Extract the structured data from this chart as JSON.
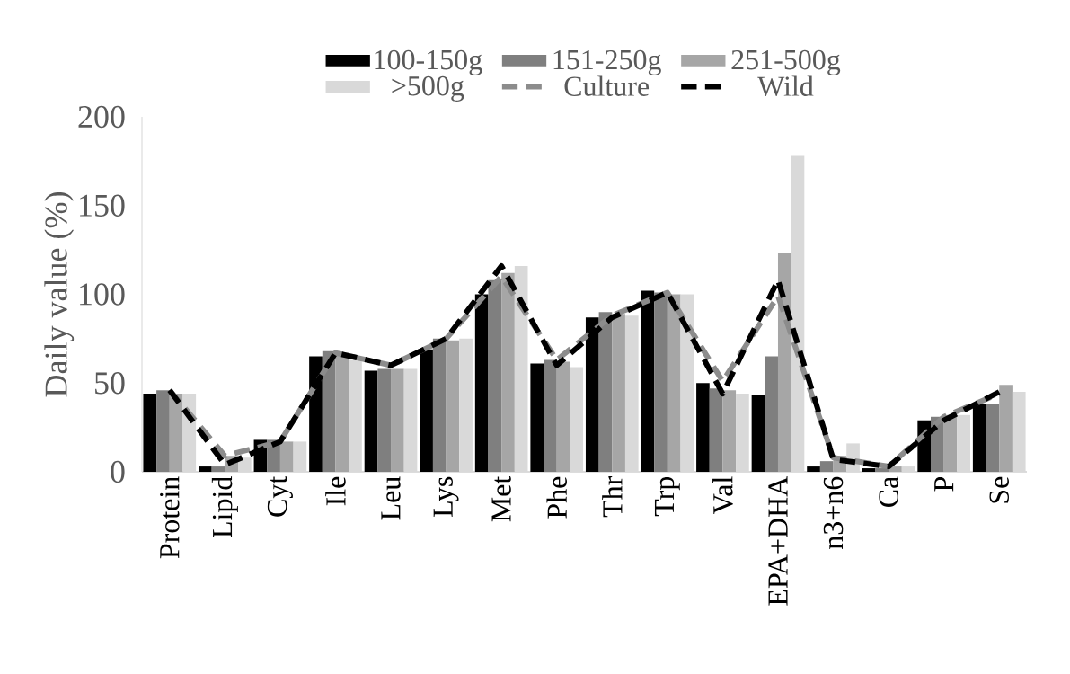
{
  "chart_data": {
    "type": "bar",
    "ylabel": "Daily value (%)",
    "categories": [
      "Protein",
      "Lipid",
      "Cyt",
      "Ile",
      "Leu",
      "Lys",
      "Met",
      "Phe",
      "Thr",
      "Trp",
      "Val",
      "EPA+DHA",
      "n3+n6",
      "Ca",
      "P",
      "Se"
    ],
    "series": [
      {
        "name": "100-150g",
        "color": "#000000",
        "values": [
          44,
          3,
          18,
          65,
          57,
          69,
          100,
          61,
          87,
          102,
          50,
          43,
          3,
          2,
          29,
          38
        ]
      },
      {
        "name": "151-250g",
        "color": "#7f7f7f",
        "values": [
          46,
          3,
          18,
          68,
          58,
          75,
          108,
          63,
          90,
          101,
          47,
          65,
          6,
          2,
          31,
          38
        ]
      },
      {
        "name": "251-500g",
        "color": "#a6a6a6",
        "values": [
          44,
          9,
          17,
          67,
          58,
          74,
          112,
          62,
          89,
          100,
          46,
          123,
          9,
          3,
          32,
          49
        ]
      },
      {
        "name": ">500g",
        "color": "#d9d9d9",
        "values": [
          44,
          8,
          17,
          63,
          58,
          75,
          116,
          59,
          88,
          100,
          44,
          178,
          16,
          3,
          32,
          45
        ]
      },
      {
        "name": "Culture",
        "type": "line",
        "line_style": "dashed",
        "color": "#8c8c8c",
        "values": [
          46,
          9,
          17,
          67,
          60,
          75,
          110,
          63,
          88,
          101,
          51,
          99,
          8,
          3,
          31,
          44
        ]
      },
      {
        "name": "Wild",
        "type": "line",
        "line_style": "dashed",
        "color": "#000000",
        "values": [
          46,
          4,
          17,
          67,
          60,
          75,
          116,
          60,
          87,
          101,
          44,
          108,
          7,
          3,
          29,
          45
        ]
      }
    ],
    "ylim": [
      0,
      200
    ],
    "yticks": [
      0,
      50,
      100,
      150,
      200
    ],
    "grid": false,
    "legend": "top"
  }
}
